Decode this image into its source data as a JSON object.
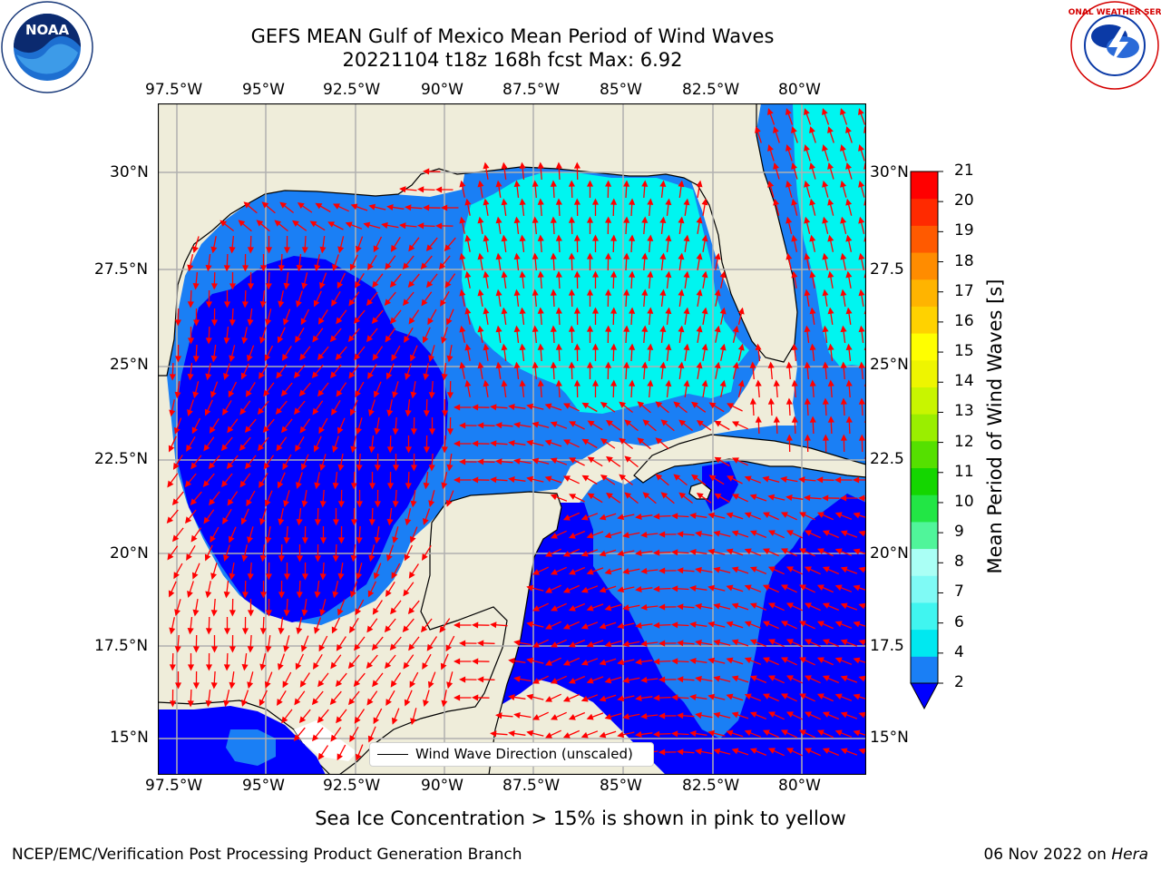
{
  "title_line1": "GEFS MEAN Gulf of Mexico Mean Period of Wind Waves",
  "title_line2": "20221104 t18z 168h fcst   Max: 6.92",
  "lon_ticks": [
    "97.5°W",
    "95°W",
    "92.5°W",
    "90°W",
    "87.5°W",
    "85°W",
    "82.5°W",
    "80°W"
  ],
  "lat_ticks_left": [
    "30°N",
    "27.5°N",
    "25°N",
    "22.5°N",
    "20°N",
    "17.5°N",
    "15°N"
  ],
  "lat_ticks_right": [
    "30°N",
    "27.5",
    "25°N",
    "22.5",
    "20°N",
    "17.5",
    "15°N"
  ],
  "colorbar": {
    "title": "Mean Period of Wind Waves [s]",
    "labels": [
      "2",
      "4",
      "6",
      "7",
      "8",
      "9",
      "10",
      "11",
      "12",
      "13",
      "14",
      "15",
      "16",
      "17",
      "18",
      "19",
      "20",
      "21"
    ],
    "colors": [
      "#1a7ff5",
      "#00e8f0",
      "#40f5f0",
      "#7ffaf5",
      "#aafff5",
      "#50f59a",
      "#22e645",
      "#14d600",
      "#55e000",
      "#9aee00",
      "#c8f500",
      "#eef500",
      "#ffff00",
      "#ffd200",
      "#ffb400",
      "#ff8c00",
      "#ff5a00",
      "#ff2a00",
      "#ff0000"
    ],
    "extend_color": "#0000ff"
  },
  "legend_label": "Wind Wave Direction (unscaled)",
  "sea_ice_note": "Sea Ice Concentration > 15% is shown in pink to yellow",
  "footer_left": "NCEP/EMC/Verification Post Processing Product Generation Branch",
  "footer_date": "06 Nov 2022 on ",
  "footer_machine": "Hera",
  "logos": {
    "left": "NOAA",
    "right": "NATIONAL WEATHER SERVICE"
  },
  "colors": {
    "land": "#efedda",
    "deep": "#0000ff",
    "mid": "#1a7ff5",
    "light": "#00f5f0",
    "arrow": "#ff0000"
  }
}
